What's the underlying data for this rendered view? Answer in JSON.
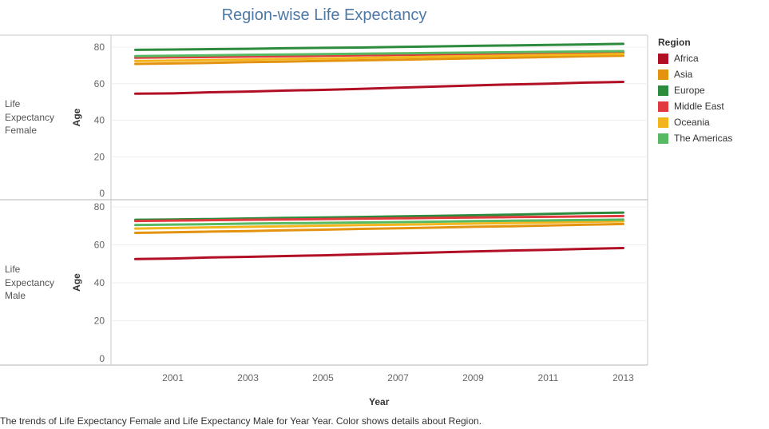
{
  "chart_data": {
    "type": "line",
    "title": "Region-wise Life Expectancy",
    "xlabel": "Year",
    "ylabel": "Age",
    "x": [
      2000,
      2001,
      2002,
      2003,
      2004,
      2005,
      2006,
      2007,
      2008,
      2009,
      2010,
      2011,
      2012,
      2013
    ],
    "x_ticks": [
      2001,
      2003,
      2005,
      2007,
      2009,
      2011,
      2013
    ],
    "ylim": [
      0,
      85
    ],
    "y_ticks": [
      0,
      20,
      40,
      60,
      80
    ],
    "legend": {
      "title": "Region",
      "position": "right"
    },
    "panels": [
      {
        "label": "Life Expectancy Female",
        "series": [
          {
            "name": "Africa",
            "color": "#b10f24",
            "values": [
              54.5,
              54.7,
              55.3,
              55.7,
              56.2,
              56.6,
              57.2,
              57.8,
              58.4,
              59.0,
              59.6,
              60.0,
              60.6,
              61.0
            ]
          },
          {
            "name": "Asia",
            "color": "#e3930f",
            "values": [
              70.8,
              71.1,
              71.4,
              71.8,
              72.1,
              72.5,
              72.8,
              73.1,
              73.5,
              73.9,
              74.2,
              74.6,
              75.0,
              75.3
            ]
          },
          {
            "name": "Europe",
            "color": "#2c8b3c",
            "values": [
              78.5,
              78.7,
              78.9,
              79.1,
              79.4,
              79.6,
              79.8,
              80.1,
              80.4,
              80.7,
              80.9,
              81.2,
              81.5,
              81.8
            ]
          },
          {
            "name": "Middle East",
            "color": "#e03a3e",
            "values": [
              74.2,
              74.4,
              74.6,
              74.8,
              75.0,
              75.3,
              75.5,
              75.7,
              75.9,
              76.2,
              76.4,
              76.6,
              76.8,
              77.0
            ]
          },
          {
            "name": "Oceania",
            "color": "#f2b51b",
            "values": [
              72.4,
              72.6,
              72.9,
              73.2,
              73.5,
              73.8,
              74.1,
              74.4,
              74.8,
              75.1,
              75.4,
              75.7,
              76.0,
              76.3
            ]
          },
          {
            "name": "The Americas",
            "color": "#57b961",
            "values": [
              75.1,
              75.3,
              75.5,
              75.8,
              76.0,
              76.2,
              76.4,
              76.6,
              76.8,
              77.0,
              77.2,
              77.4,
              77.6,
              77.8
            ]
          }
        ]
      },
      {
        "label": "Life Expectancy Male",
        "series": [
          {
            "name": "Africa",
            "color": "#b10f24",
            "values": [
              52.5,
              52.8,
              53.4,
              53.7,
              54.1,
              54.5,
              55.0,
              55.5,
              56.0,
              56.5,
              57.0,
              57.4,
              57.9,
              58.3
            ]
          },
          {
            "name": "Asia",
            "color": "#e3930f",
            "values": [
              66.3,
              66.6,
              67.0,
              67.3,
              67.7,
              68.0,
              68.4,
              68.7,
              69.1,
              69.5,
              69.8,
              70.2,
              70.6,
              71.0
            ]
          },
          {
            "name": "Europe",
            "color": "#2c8b3c",
            "values": [
              73.2,
              73.4,
              73.6,
              73.9,
              74.2,
              74.4,
              74.7,
              75.0,
              75.3,
              75.6,
              75.9,
              76.3,
              76.7,
              77.0
            ]
          },
          {
            "name": "Middle East",
            "color": "#e03a3e",
            "values": [
              72.6,
              72.8,
              73.0,
              73.2,
              73.4,
              73.6,
              73.8,
              74.0,
              74.2,
              74.4,
              74.6,
              74.8,
              75.0,
              75.2
            ]
          },
          {
            "name": "Oceania",
            "color": "#f2b51b",
            "values": [
              68.6,
              68.9,
              69.2,
              69.5,
              69.8,
              70.1,
              70.4,
              70.6,
              70.9,
              71.2,
              71.5,
              71.8,
              72.1,
              72.4
            ]
          },
          {
            "name": "The Americas",
            "color": "#57b961",
            "values": [
              70.5,
              70.7,
              70.9,
              71.2,
              71.4,
              71.6,
              71.8,
              72.0,
              72.2,
              72.5,
              72.7,
              72.9,
              73.1,
              73.3
            ]
          }
        ]
      }
    ]
  },
  "caption": "The trends of Life Expectancy Female and Life Expectancy Male for Year Year.  Color shows details about Region."
}
